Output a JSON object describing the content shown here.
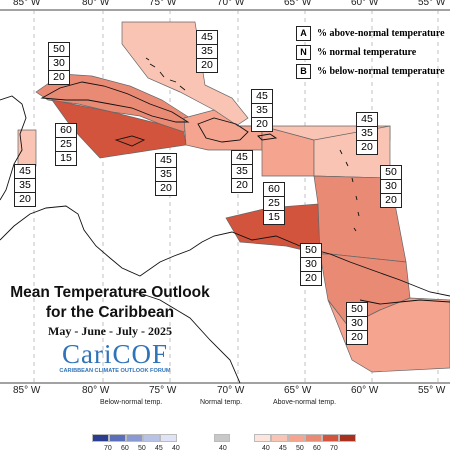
{
  "map": {
    "lon_labels": [
      "85° W",
      "80° W",
      "75° W",
      "70° W",
      "65° W",
      "60° W",
      "55° W"
    ],
    "lon_labels_bottom": [
      "85° W",
      "80° W",
      "75° W",
      "70° W",
      "65° W",
      "60° W",
      "55° W"
    ],
    "regions": [
      {
        "name": "bahamas",
        "above": "45",
        "normal": "35",
        "below": "20",
        "color": "#f9c4b3"
      },
      {
        "name": "cuba",
        "above": "50",
        "normal": "30",
        "below": "20",
        "color": "#e98a75"
      },
      {
        "name": "jamaica-cayman",
        "above": "60",
        "normal": "25",
        "below": "15",
        "color": "#d2543d"
      },
      {
        "name": "belize",
        "above": "45",
        "normal": "35",
        "below": "20",
        "color": "#f9c4b3"
      },
      {
        "name": "hispaniola",
        "above": "45",
        "normal": "35",
        "below": "20",
        "color": "#f4a48f"
      },
      {
        "name": "haiti-south",
        "above": "45",
        "normal": "35",
        "below": "20",
        "color": "#f4a48f"
      },
      {
        "name": "central-caribbean",
        "above": "45",
        "normal": "35",
        "below": "20",
        "color": "#f9c4b3"
      },
      {
        "name": "northern-leewards",
        "above": "45",
        "normal": "35",
        "below": "20",
        "color": "#f9c4b3"
      },
      {
        "name": "aruba-curacao",
        "above": "60",
        "normal": "25",
        "below": "15",
        "color": "#d2543d"
      },
      {
        "name": "windwards",
        "above": "50",
        "normal": "30",
        "below": "20",
        "color": "#e98a75"
      },
      {
        "name": "trinidad",
        "above": "50",
        "normal": "30",
        "below": "20",
        "color": "#e98a75"
      },
      {
        "name": "guianas",
        "above": "50",
        "normal": "30",
        "below": "20",
        "color": "#f4a48f"
      }
    ]
  },
  "legend": {
    "above": {
      "key": "A",
      "text": "% above-normal temperature"
    },
    "normal": {
      "key": "N",
      "text": "% normal temperature"
    },
    "below": {
      "key": "B",
      "text": "% below-normal temperature"
    }
  },
  "title": {
    "line1": "Mean Temperature Outlook",
    "line2": "for the Caribbean",
    "period": "May - June - July - 2025"
  },
  "logo": {
    "word": "CariCOF",
    "subtitle": "CARIBBEAN CLIMATE OUTLOOK FORUM"
  },
  "colorbar": {
    "below_title": "Below-normal temp.",
    "normal_title": "Normal temp.",
    "above_title": "Above-normal temp.",
    "below_ticks": [
      "70",
      "60",
      "50",
      "45",
      "40"
    ],
    "normal_tick": "40",
    "above_ticks": [
      "40",
      "45",
      "50",
      "60",
      "70"
    ],
    "below_colors": [
      "#2a3d8f",
      "#5a6fb8",
      "#8a99d1",
      "#b8c1e6",
      "#dfe3f5"
    ],
    "normal_color": "#c8c8c8",
    "above_colors": [
      "#fde4dc",
      "#f9c4b3",
      "#f4a48f",
      "#e98a75",
      "#d2543d",
      "#a8301f"
    ]
  }
}
